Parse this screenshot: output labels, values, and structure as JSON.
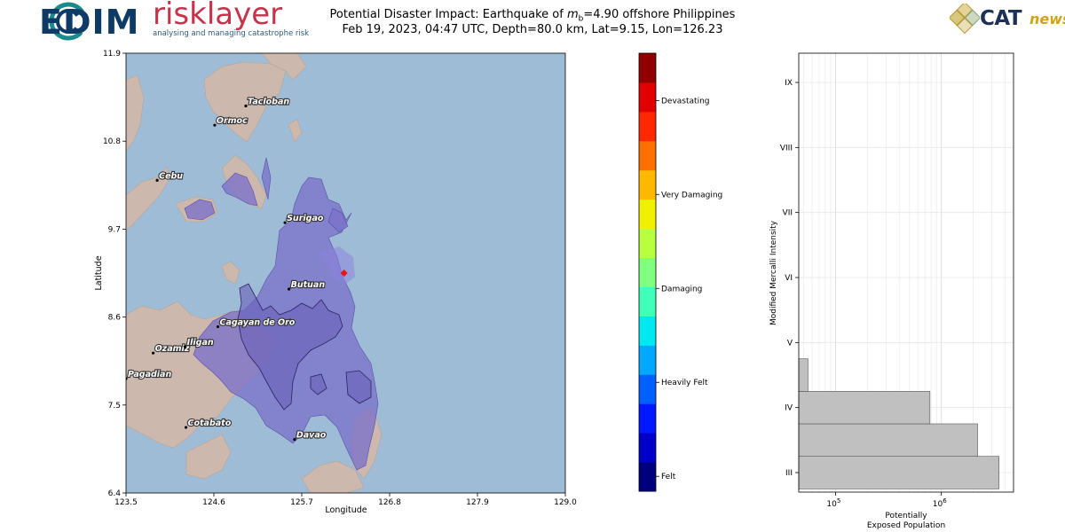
{
  "logos": {
    "cedim": "EDIM",
    "risklayer_name": "risklayer",
    "risklayer_tag": "analysing and managing catastrophe risk",
    "catnews_cat": "CAT",
    "catnews_news": "news"
  },
  "title": {
    "line1": "Potential Disaster Impact: Earthquake of m_b=4.90 offshore Philippines",
    "line1_prefix": "Potential Disaster Impact: Earthquake of ",
    "line1_m": "m",
    "line1_sub": "b",
    "line1_suffix": "=4.90 offshore Philippines",
    "line2": "Feb 19, 2023, 04:47 UTC, Depth=80.0 km, Lat=9.15, Lon=126.23"
  },
  "chart_data": [
    {
      "type": "scatter",
      "panel": "map",
      "xlabel": "Longitude",
      "ylabel": "Latitude",
      "xlim": [
        123.5,
        129.0
      ],
      "ylim": [
        6.4,
        11.9
      ],
      "x_ticks": [
        "123.5",
        "124.6",
        "125.7",
        "126.8",
        "127.9",
        "129.0"
      ],
      "y_ticks": [
        "6.4",
        "7.5",
        "8.6",
        "9.7",
        "10.8",
        "11.9"
      ],
      "epicenter": {
        "lon": 126.23,
        "lat": 9.15,
        "color": "#ee1111"
      },
      "cities": [
        {
          "name": "Tacloban",
          "lon": 125.0,
          "lat": 11.24
        },
        {
          "name": "Ormoc",
          "lon": 124.61,
          "lat": 11.0
        },
        {
          "name": "Cebu",
          "lon": 123.89,
          "lat": 10.31
        },
        {
          "name": "Surigao",
          "lon": 125.49,
          "lat": 9.78
        },
        {
          "name": "Butuan",
          "lon": 125.54,
          "lat": 8.95
        },
        {
          "name": "Cagayan de Oro",
          "lon": 124.65,
          "lat": 8.48
        },
        {
          "name": "Ozamiz",
          "lon": 123.84,
          "lat": 8.15
        },
        {
          "name": "Iligan",
          "lon": 124.24,
          "lat": 8.23
        },
        {
          "name": "Pagadian",
          "lon": 123.5,
          "lat": 7.83
        },
        {
          "name": "Cotabato",
          "lon": 124.25,
          "lat": 7.22
        },
        {
          "name": "Davao",
          "lon": 125.61,
          "lat": 7.07
        }
      ],
      "colors": {
        "sea": "#9fbcd6",
        "land": "#cdb8ae",
        "impact": "#7b72c9"
      }
    },
    {
      "type": "bar",
      "panel": "colorbar",
      "labels": [
        "Devastating",
        "Very Damaging",
        "Damaging",
        "Heavily Felt",
        "Felt"
      ],
      "colors": [
        "#00007f",
        "#0000c8",
        "#0018ff",
        "#0060ff",
        "#00a8ff",
        "#00e8f0",
        "#40ffb8",
        "#80ff80",
        "#b8ff40",
        "#f0f000",
        "#ffb800",
        "#ff7000",
        "#ff2800",
        "#e00000",
        "#900000"
      ]
    },
    {
      "type": "bar",
      "orientation": "horizontal",
      "panel": "exposure",
      "xlabel": "Potentially\nExposed Population",
      "xlabel_line1": "Potentially",
      "xlabel_line2": "Exposed Population",
      "ylabel": "Modified Mercalli Intensity",
      "xscale": "log",
      "xlim": [
        45000,
        4800000
      ],
      "x_ticks": [
        {
          "label": "10",
          "exp": "5",
          "value": 100000
        },
        {
          "label": "10",
          "exp": "6",
          "value": 1000000
        }
      ],
      "categories": [
        "III",
        "IV",
        "V",
        "VI",
        "VII",
        "VIII",
        "IX"
      ],
      "bars": [
        {
          "intensity": 3.0,
          "value": 3500000
        },
        {
          "intensity": 3.5,
          "value": 2200000
        },
        {
          "intensity": 4.0,
          "value": 780000
        },
        {
          "intensity": 4.5,
          "value": 55000
        }
      ],
      "bar_color": "#c0c0c0",
      "grid": true
    }
  ]
}
